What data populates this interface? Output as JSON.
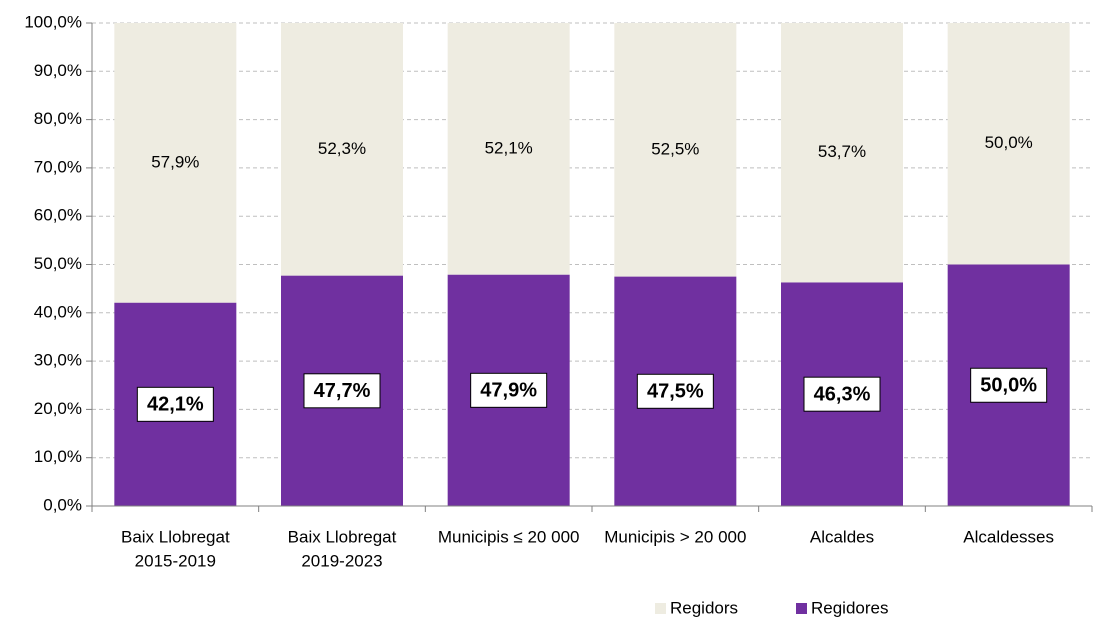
{
  "chart_data": {
    "type": "bar",
    "stacked": true,
    "categories": [
      [
        "Baix Llobregat",
        "2015-2019"
      ],
      [
        "Baix Llobregat",
        "2019-2023"
      ],
      [
        "Municipis ≤ 20 000"
      ],
      [
        "Municipis > 20 000"
      ],
      [
        "Alcaldes"
      ],
      [
        "Alcaldesses"
      ]
    ],
    "series": [
      {
        "name": "Regidors",
        "color": "#eeece1",
        "values": [
          57.9,
          52.3,
          52.1,
          52.5,
          53.7,
          50.0
        ],
        "value_labels": [
          "57,9%",
          "52,3%",
          "52,1%",
          "52,5%",
          "53,7%",
          "50,0%"
        ]
      },
      {
        "name": "Regidores",
        "color": "#7030a0",
        "values": [
          42.1,
          47.7,
          47.9,
          47.5,
          46.3,
          50.0
        ],
        "value_labels": [
          "42,1%",
          "47,7%",
          "47,9%",
          "47,5%",
          "46,3%",
          "50,0%"
        ]
      }
    ],
    "ylim": [
      0,
      100
    ],
    "yticks": [
      {
        "value": 0,
        "label": "0,0%"
      },
      {
        "value": 10,
        "label": "10,0%"
      },
      {
        "value": 20,
        "label": "20,0%"
      },
      {
        "value": 30,
        "label": "30,0%"
      },
      {
        "value": 40,
        "label": "40,0%"
      },
      {
        "value": 50,
        "label": "50,0%"
      },
      {
        "value": 60,
        "label": "60,0%"
      },
      {
        "value": 70,
        "label": "70,0%"
      },
      {
        "value": 80,
        "label": "80,0%"
      },
      {
        "value": 90,
        "label": "90,0%"
      },
      {
        "value": 100,
        "label": "100,0%"
      }
    ],
    "grid": true,
    "legend": "bottom"
  }
}
